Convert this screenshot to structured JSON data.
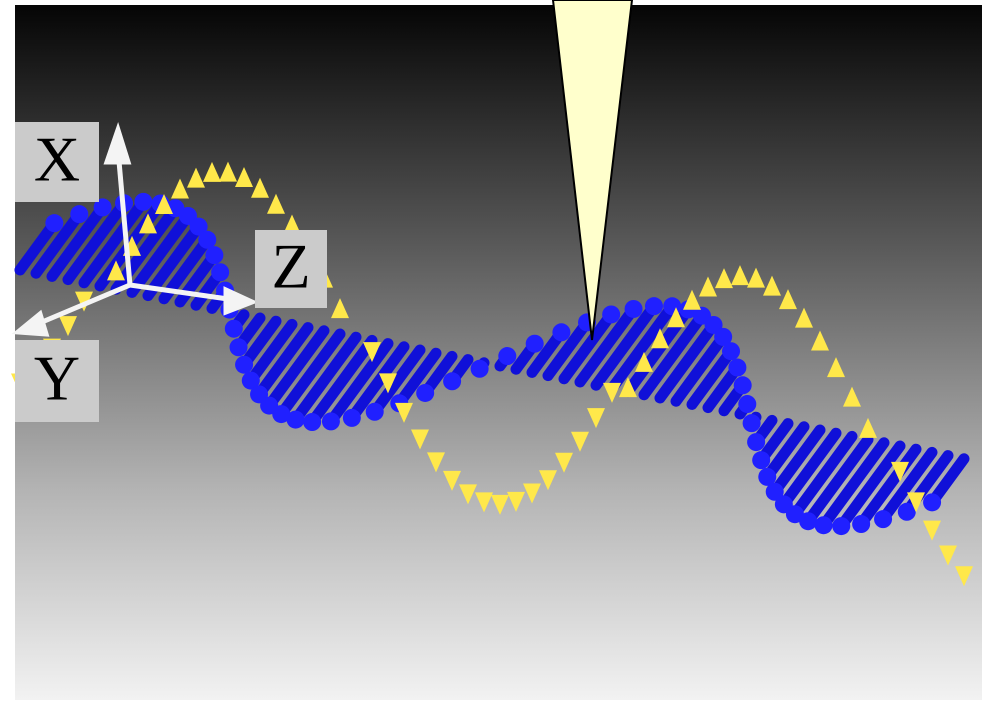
{
  "axes": {
    "x_label": "X",
    "y_label": "Y",
    "z_label": "Z"
  }
}
